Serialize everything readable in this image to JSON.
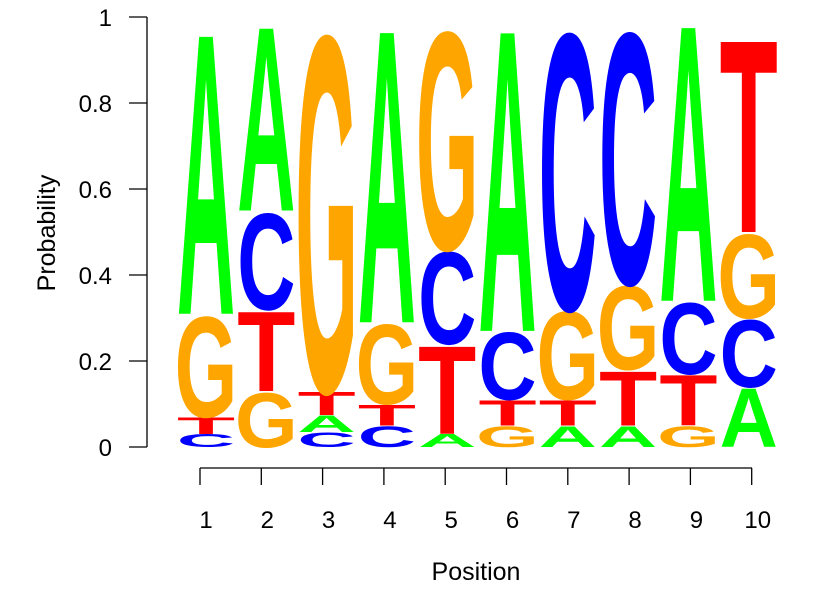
{
  "chart_data": {
    "type": "sequence-logo",
    "title": "",
    "xlabel": "Position",
    "ylabel": "Probability",
    "ylim": [
      0,
      1
    ],
    "yticks": [
      "0",
      "0.2",
      "0.4",
      "0.6",
      "0.8",
      "1"
    ],
    "ytick_values": [
      0,
      0.2,
      0.4,
      0.6,
      0.8,
      1
    ],
    "categories": [
      "1",
      "2",
      "3",
      "4",
      "5",
      "6",
      "7",
      "8",
      "9",
      "10"
    ],
    "colors": {
      "A": "#00ff00",
      "C": "#0000ff",
      "G": "#ffa500",
      "T": "#ff0000"
    },
    "grid": false,
    "legend": null,
    "columns": [
      {
        "position": "1",
        "stack": [
          {
            "base": "C",
            "p": 0.03
          },
          {
            "base": "T",
            "p": 0.04
          },
          {
            "base": "G",
            "p": 0.24
          },
          {
            "base": "A",
            "p": 0.67
          }
        ]
      },
      {
        "position": "2",
        "stack": [
          {
            "base": "G",
            "p": 0.13
          },
          {
            "base": "T",
            "p": 0.19
          },
          {
            "base": "C",
            "p": 0.23
          },
          {
            "base": "A",
            "p": 0.44
          }
        ]
      },
      {
        "position": "3",
        "stack": [
          {
            "base": "C",
            "p": 0.035
          },
          {
            "base": "A",
            "p": 0.04
          },
          {
            "base": "T",
            "p": 0.055
          },
          {
            "base": "G",
            "p": 0.85
          }
        ]
      },
      {
        "position": "4",
        "stack": [
          {
            "base": "C",
            "p": 0.05
          },
          {
            "base": "T",
            "p": 0.05
          },
          {
            "base": "G",
            "p": 0.19
          },
          {
            "base": "A",
            "p": 0.7
          }
        ]
      },
      {
        "position": "5",
        "stack": [
          {
            "base": "A",
            "p": 0.03
          },
          {
            "base": "T",
            "p": 0.21
          },
          {
            "base": "C",
            "p": 0.22
          },
          {
            "base": "G",
            "p": 0.52
          }
        ]
      },
      {
        "position": "6",
        "stack": [
          {
            "base": "G",
            "p": 0.05
          },
          {
            "base": "T",
            "p": 0.06
          },
          {
            "base": "C",
            "p": 0.16
          },
          {
            "base": "A",
            "p": 0.72
          }
        ]
      },
      {
        "position": "7",
        "stack": [
          {
            "base": "A",
            "p": 0.05
          },
          {
            "base": "T",
            "p": 0.06
          },
          {
            "base": "G",
            "p": 0.21
          },
          {
            "base": "C",
            "p": 0.66
          }
        ]
      },
      {
        "position": "8",
        "stack": [
          {
            "base": "A",
            "p": 0.05
          },
          {
            "base": "T",
            "p": 0.13
          },
          {
            "base": "G",
            "p": 0.2
          },
          {
            "base": "C",
            "p": 0.6
          }
        ]
      },
      {
        "position": "9",
        "stack": [
          {
            "base": "G",
            "p": 0.05
          },
          {
            "base": "T",
            "p": 0.12
          },
          {
            "base": "C",
            "p": 0.17
          },
          {
            "base": "A",
            "p": 0.66
          }
        ]
      },
      {
        "position": "10",
        "stack": [
          {
            "base": "A",
            "p": 0.14
          },
          {
            "base": "C",
            "p": 0.16
          },
          {
            "base": "G",
            "p": 0.2
          },
          {
            "base": "T",
            "p": 0.46
          }
        ]
      }
    ]
  }
}
